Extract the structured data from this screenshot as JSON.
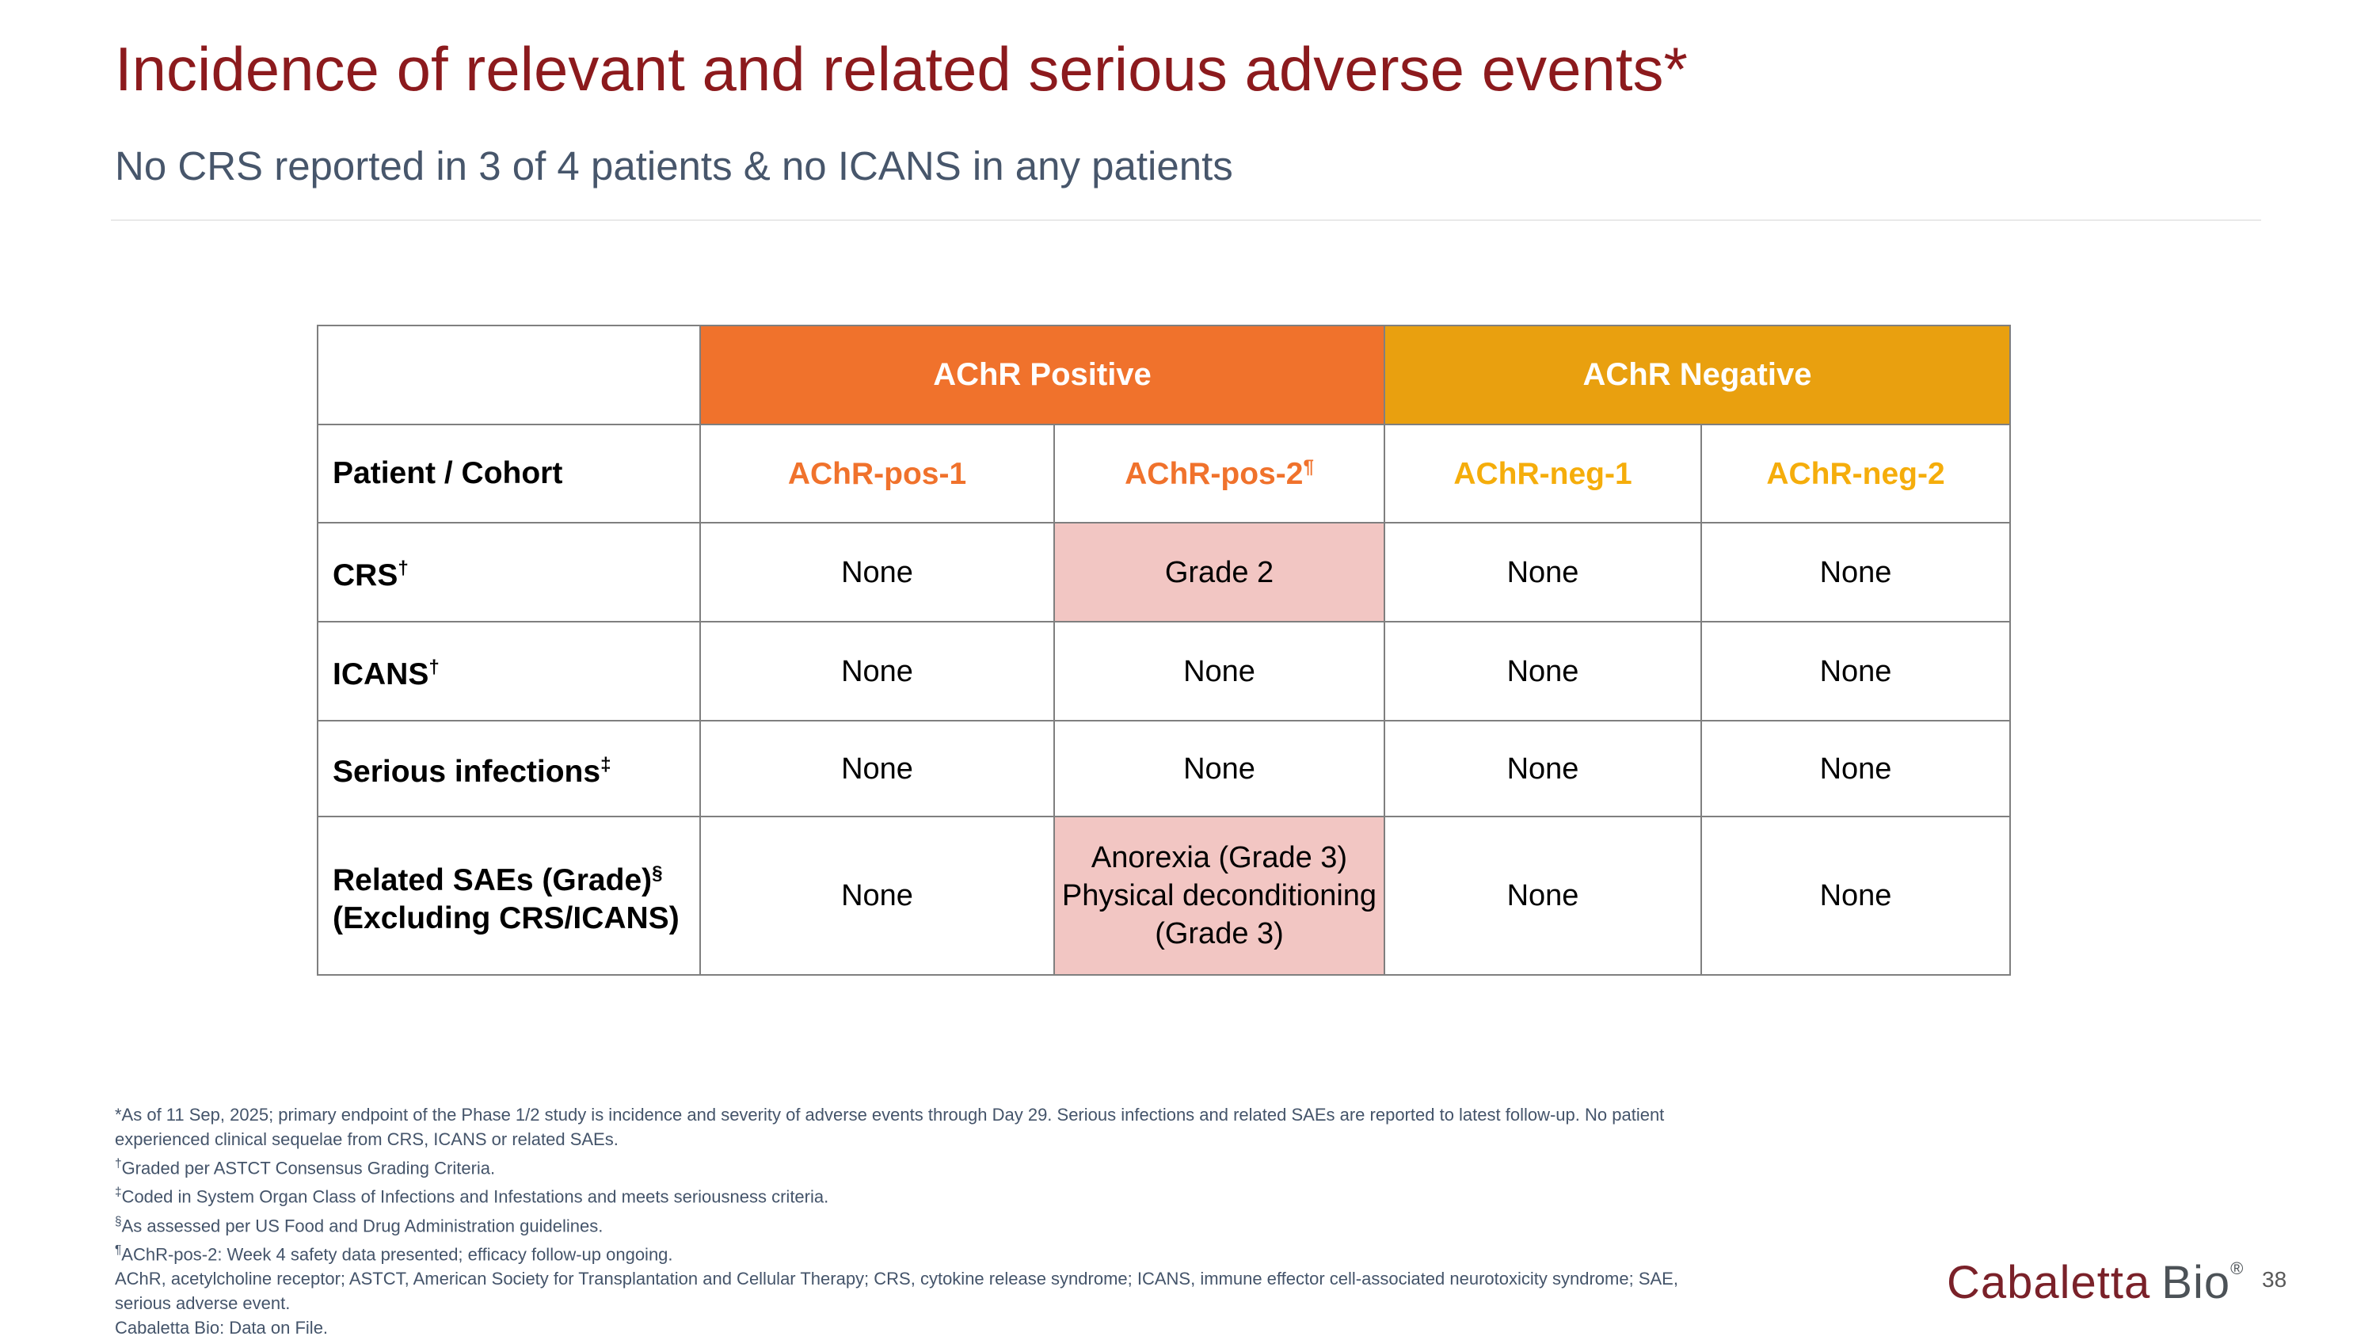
{
  "slide": {
    "title": "Incidence of relevant and related serious adverse events*",
    "subtitle": "No CRS reported in 3 of 4 patients & no ICANS in any patients",
    "page_number": "38"
  },
  "theme": {
    "title_color": "#8C1A1D",
    "subtitle_color": "#47566B",
    "positive_color": "#F0722C",
    "negative_color": "#E9A00F",
    "neg_text_color": "#F5AD0B",
    "highlight_color": "#F2C6C3",
    "border_color": "#7F7F7F",
    "footnote_color": "#44546A",
    "logo_maroon": "#7A2129",
    "logo_gray": "#4C5257"
  },
  "table": {
    "corner_label": "Patient / Cohort",
    "group_headers": [
      {
        "label": "AChR Positive"
      },
      {
        "label": "AChR Negative"
      }
    ],
    "columns": [
      {
        "label": "AChR-pos-1",
        "sup": "",
        "group": "pos"
      },
      {
        "label": "AChR-pos-2",
        "sup": "¶",
        "group": "pos"
      },
      {
        "label": "AChR-neg-1",
        "sup": "",
        "group": "neg"
      },
      {
        "label": "AChR-neg-2",
        "sup": "",
        "group": "neg"
      }
    ],
    "rows": [
      {
        "label": "CRS",
        "sup": "†",
        "label2": "",
        "cells": [
          {
            "text": "None",
            "highlight": false
          },
          {
            "text": "Grade 2",
            "highlight": true
          },
          {
            "text": "None",
            "highlight": false
          },
          {
            "text": "None",
            "highlight": false
          }
        ]
      },
      {
        "label": "ICANS",
        "sup": "†",
        "label2": "",
        "cells": [
          {
            "text": "None",
            "highlight": false
          },
          {
            "text": "None",
            "highlight": false
          },
          {
            "text": "None",
            "highlight": false
          },
          {
            "text": "None",
            "highlight": false
          }
        ]
      },
      {
        "label": "Serious infections",
        "sup": "‡",
        "label2": "",
        "cells": [
          {
            "text": "None",
            "highlight": false
          },
          {
            "text": "None",
            "highlight": false
          },
          {
            "text": "None",
            "highlight": false
          },
          {
            "text": "None",
            "highlight": false
          }
        ]
      },
      {
        "label": "Related SAEs (Grade)",
        "sup": "§",
        "label2": "(Excluding CRS/ICANS)",
        "cells": [
          {
            "text": "None",
            "highlight": false
          },
          {
            "text": "Anorexia (Grade 3)\nPhysical deconditioning\n(Grade 3)",
            "highlight": true
          },
          {
            "text": "None",
            "highlight": false
          },
          {
            "text": "None",
            "highlight": false
          }
        ]
      }
    ]
  },
  "footnotes": {
    "lines": [
      {
        "sup": "",
        "text": "*As of 11 Sep, 2025; primary endpoint of the Phase 1/2 study is incidence and severity of adverse events through Day 29. Serious infections and related SAEs are reported to latest follow-up. No patient"
      },
      {
        "sup": "",
        "text": "experienced clinical sequelae from CRS, ICANS or related SAEs."
      },
      {
        "sup": "†",
        "text": "Graded per ASTCT Consensus Grading Criteria."
      },
      {
        "sup": "‡",
        "text": "Coded in System Organ Class of Infections and Infestations and meets seriousness criteria."
      },
      {
        "sup": "§",
        "text": "As assessed per US Food and Drug Administration guidelines."
      },
      {
        "sup": "¶",
        "text": "AChR-pos-2: Week 4 safety data presented; efficacy follow-up ongoing."
      },
      {
        "sup": "",
        "text": "AChR, acetylcholine receptor; ASTCT, American Society for Transplantation and Cellular Therapy; CRS, cytokine release syndrome; ICANS, immune effector cell-associated neurotoxicity syndrome; SAE,"
      },
      {
        "sup": "",
        "text": "serious adverse event."
      },
      {
        "sup": "",
        "text": "Cabaletta Bio: Data on File."
      }
    ]
  },
  "logo": {
    "brand": "Cabaletta",
    "suffix": "Bio",
    "reg": "®"
  }
}
